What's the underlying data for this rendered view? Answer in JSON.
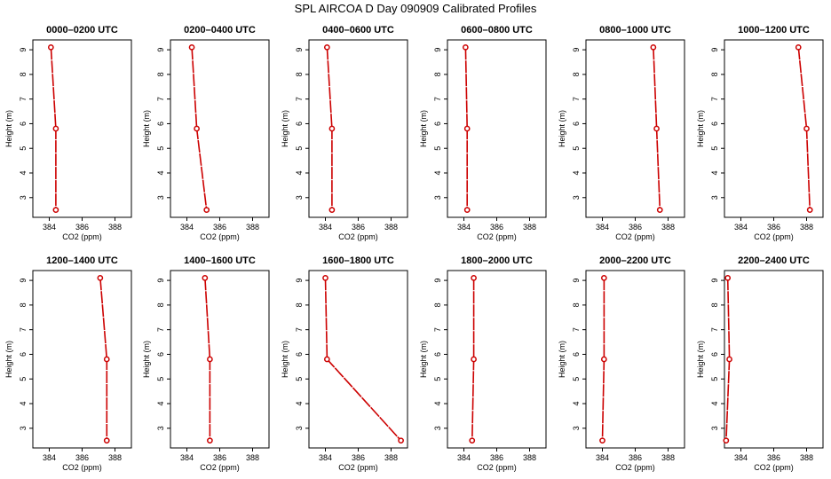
{
  "title": "SPL AIRCOA D  Day 090909  Calibrated Profiles",
  "colors": {
    "series": "#cc0000",
    "axis": "#000000"
  },
  "chart_data": [
    {
      "type": "line",
      "title": "0000–0200 UTC",
      "xlabel": "CO2 (ppm)",
      "ylabel": "Height (m)",
      "xlim": [
        383,
        389
      ],
      "ylim": [
        2.2,
        9.4
      ],
      "xticks": [
        384,
        386,
        388
      ],
      "yticks": [
        3,
        4,
        5,
        6,
        7,
        8,
        9
      ],
      "grid": false,
      "x": [
        384.1,
        384.4,
        384.4
      ],
      "y": [
        9.1,
        5.8,
        2.5
      ]
    },
    {
      "type": "line",
      "title": "0200–0400 UTC",
      "xlabel": "CO2 (ppm)",
      "ylabel": "Height (m)",
      "xlim": [
        383,
        389
      ],
      "ylim": [
        2.2,
        9.4
      ],
      "xticks": [
        384,
        386,
        388
      ],
      "yticks": [
        3,
        4,
        5,
        6,
        7,
        8,
        9
      ],
      "grid": false,
      "x": [
        384.3,
        384.6,
        385.2
      ],
      "y": [
        9.1,
        5.8,
        2.5
      ]
    },
    {
      "type": "line",
      "title": "0400–0600 UTC",
      "xlabel": "CO2 (ppm)",
      "ylabel": "Height (m)",
      "xlim": [
        383,
        389
      ],
      "ylim": [
        2.2,
        9.4
      ],
      "xticks": [
        384,
        386,
        388
      ],
      "yticks": [
        3,
        4,
        5,
        6,
        7,
        8,
        9
      ],
      "grid": false,
      "x": [
        384.1,
        384.4,
        384.4
      ],
      "y": [
        9.1,
        5.8,
        2.5
      ]
    },
    {
      "type": "line",
      "title": "0600–0800 UTC",
      "xlabel": "CO2 (ppm)",
      "ylabel": "Height (m)",
      "xlim": [
        383,
        389
      ],
      "ylim": [
        2.2,
        9.4
      ],
      "xticks": [
        384,
        386,
        388
      ],
      "yticks": [
        3,
        4,
        5,
        6,
        7,
        8,
        9
      ],
      "grid": false,
      "x": [
        384.1,
        384.2,
        384.2
      ],
      "y": [
        9.1,
        5.8,
        2.5
      ]
    },
    {
      "type": "line",
      "title": "0800–1000 UTC",
      "xlabel": "CO2 (ppm)",
      "ylabel": "Height (m)",
      "xlim": [
        383,
        389
      ],
      "ylim": [
        2.2,
        9.4
      ],
      "xticks": [
        384,
        386,
        388
      ],
      "yticks": [
        3,
        4,
        5,
        6,
        7,
        8,
        9
      ],
      "grid": false,
      "x": [
        387.1,
        387.3,
        387.5
      ],
      "y": [
        9.1,
        5.8,
        2.5
      ]
    },
    {
      "type": "line",
      "title": "1000–1200 UTC",
      "xlabel": "CO2 (ppm)",
      "ylabel": "Height (m)",
      "xlim": [
        383,
        389
      ],
      "ylim": [
        2.2,
        9.4
      ],
      "xticks": [
        384,
        386,
        388
      ],
      "yticks": [
        3,
        4,
        5,
        6,
        7,
        8,
        9
      ],
      "grid": false,
      "x": [
        387.5,
        388.0,
        388.2
      ],
      "y": [
        9.1,
        5.8,
        2.5
      ]
    },
    {
      "type": "line",
      "title": "1200–1400 UTC",
      "xlabel": "CO2 (ppm)",
      "ylabel": "Height (m)",
      "xlim": [
        383,
        389
      ],
      "ylim": [
        2.2,
        9.4
      ],
      "xticks": [
        384,
        386,
        388
      ],
      "yticks": [
        3,
        4,
        5,
        6,
        7,
        8,
        9
      ],
      "grid": false,
      "x": [
        387.1,
        387.5,
        387.5
      ],
      "y": [
        9.1,
        5.8,
        2.5
      ]
    },
    {
      "type": "line",
      "title": "1400–1600 UTC",
      "xlabel": "CO2 (ppm)",
      "ylabel": "Height (m)",
      "xlim": [
        383,
        389
      ],
      "ylim": [
        2.2,
        9.4
      ],
      "xticks": [
        384,
        386,
        388
      ],
      "yticks": [
        3,
        4,
        5,
        6,
        7,
        8,
        9
      ],
      "grid": false,
      "x": [
        385.1,
        385.4,
        385.4
      ],
      "y": [
        9.1,
        5.8,
        2.5
      ]
    },
    {
      "type": "line",
      "title": "1600–1800 UTC",
      "xlabel": "CO2 (ppm)",
      "ylabel": "Height (m)",
      "xlim": [
        383,
        389
      ],
      "ylim": [
        2.2,
        9.4
      ],
      "xticks": [
        384,
        386,
        388
      ],
      "yticks": [
        3,
        4,
        5,
        6,
        7,
        8,
        9
      ],
      "grid": false,
      "x": [
        384.0,
        384.1,
        388.6
      ],
      "y": [
        9.1,
        5.8,
        2.5
      ]
    },
    {
      "type": "line",
      "title": "1800–2000 UTC",
      "xlabel": "CO2 (ppm)",
      "ylabel": "Height (m)",
      "xlim": [
        383,
        389
      ],
      "ylim": [
        2.2,
        9.4
      ],
      "xticks": [
        384,
        386,
        388
      ],
      "yticks": [
        3,
        4,
        5,
        6,
        7,
        8,
        9
      ],
      "grid": false,
      "x": [
        384.6,
        384.6,
        384.5
      ],
      "y": [
        9.1,
        5.8,
        2.5
      ]
    },
    {
      "type": "line",
      "title": "2000–2200 UTC",
      "xlabel": "CO2 (ppm)",
      "ylabel": "Height (m)",
      "xlim": [
        383,
        389
      ],
      "ylim": [
        2.2,
        9.4
      ],
      "xticks": [
        384,
        386,
        388
      ],
      "yticks": [
        3,
        4,
        5,
        6,
        7,
        8,
        9
      ],
      "grid": false,
      "x": [
        384.1,
        384.1,
        384.0
      ],
      "y": [
        9.1,
        5.8,
        2.5
      ]
    },
    {
      "type": "line",
      "title": "2200–2400 UTC",
      "xlabel": "CO2 (ppm)",
      "ylabel": "Height (m)",
      "xlim": [
        383,
        389
      ],
      "ylim": [
        2.2,
        9.4
      ],
      "xticks": [
        384,
        386,
        388
      ],
      "yticks": [
        3,
        4,
        5,
        6,
        7,
        8,
        9
      ],
      "grid": false,
      "x": [
        383.2,
        383.3,
        383.1
      ],
      "y": [
        9.1,
        5.8,
        2.5
      ]
    }
  ]
}
